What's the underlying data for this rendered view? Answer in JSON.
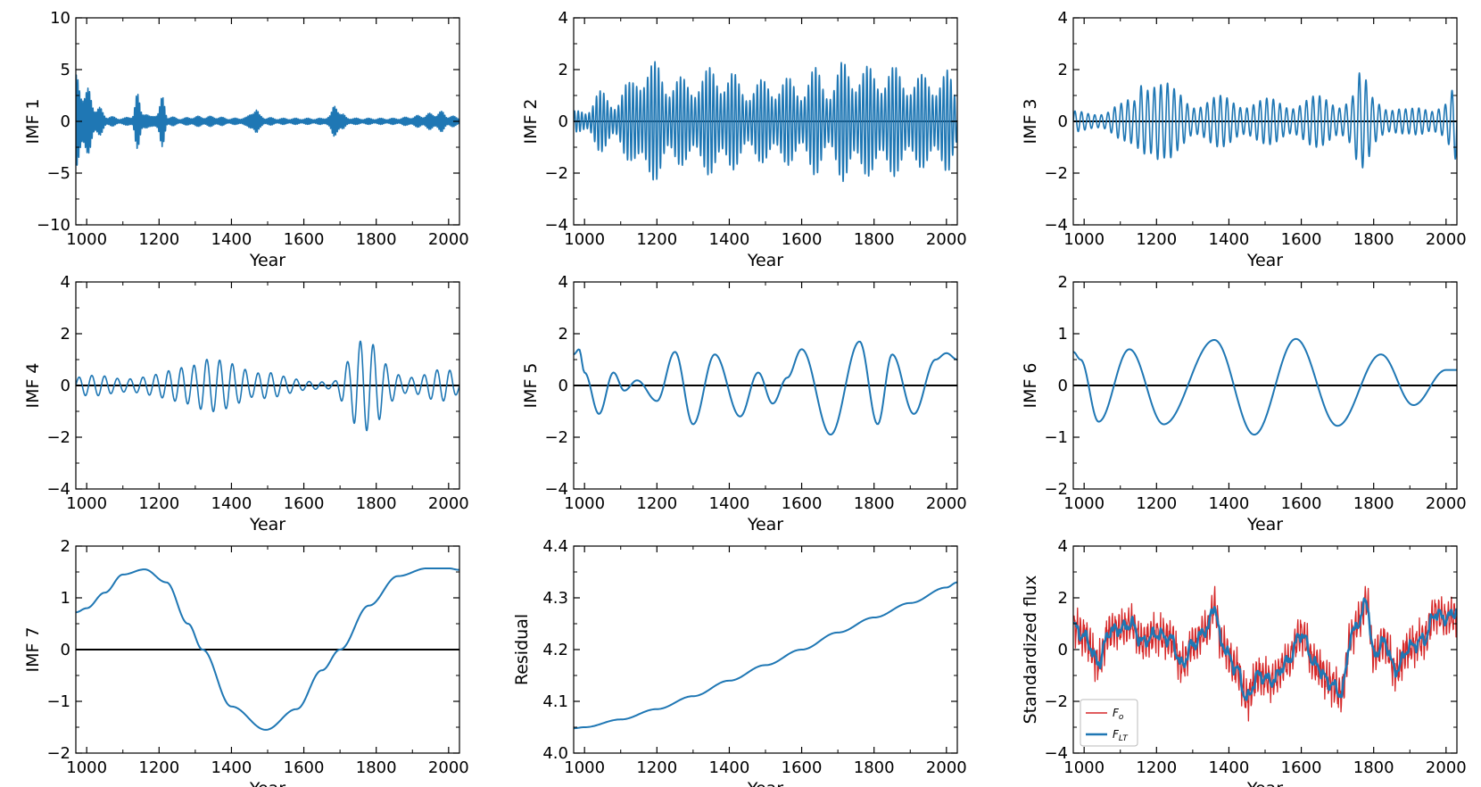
{
  "figure": {
    "background": "#ffffff",
    "blue": "#1f77b4",
    "red": "#d62728"
  },
  "chart_data": [
    {
      "type": "line",
      "id": "imf1",
      "xlabel": "Year",
      "ylabel": "IMF 1",
      "xlim": [
        970,
        2030
      ],
      "ylim": [
        -10,
        10
      ],
      "xticks": [
        1000,
        1200,
        1400,
        1600,
        1800,
        2000
      ],
      "yticks": [
        -10,
        -5,
        0,
        5,
        10
      ],
      "zero_line": true,
      "series": [
        {
          "name": "IMF 1",
          "color": "#1f77b4",
          "kind": "oscillation",
          "x": [
            970,
            985,
            1000,
            1030,
            1060,
            1100,
            1125,
            1140,
            1155,
            1175,
            1195,
            1210,
            1225,
            1260,
            1300,
            1350,
            1400,
            1440,
            1465,
            1480,
            1495,
            1530,
            1600,
            1650,
            1670,
            1690,
            1705,
            1720,
            1750,
            1800,
            1850,
            1880,
            1900,
            1920,
            1950,
            1980,
            2000,
            2030
          ],
          "amp": [
            4.5,
            4.0,
            3.3,
            1.5,
            0.5,
            0.3,
            0.6,
            2.7,
            1.2,
            0.5,
            1.0,
            2.5,
            0.5,
            0.3,
            0.5,
            0.5,
            0.3,
            0.4,
            1.5,
            0.6,
            0.4,
            0.3,
            0.3,
            0.3,
            0.6,
            2.0,
            0.8,
            0.4,
            0.3,
            0.3,
            0.3,
            0.4,
            0.5,
            0.6,
            0.8,
            1.0,
            0.6,
            0.4
          ],
          "cycles": 230
        }
      ]
    },
    {
      "type": "line",
      "id": "imf2",
      "xlabel": "Year",
      "ylabel": "IMF 2",
      "xlim": [
        970,
        2030
      ],
      "ylim": [
        -4,
        4
      ],
      "xticks": [
        1000,
        1200,
        1400,
        1600,
        1800,
        2000
      ],
      "yticks": [
        -4,
        -2,
        0,
        2,
        4
      ],
      "zero_line": true,
      "series": [
        {
          "name": "IMF 2",
          "color": "#1f77b4",
          "kind": "oscillation",
          "x": [
            970,
            1000,
            1040,
            1080,
            1120,
            1160,
            1200,
            1240,
            1280,
            1320,
            1360,
            1400,
            1440,
            1480,
            1520,
            1560,
            1600,
            1640,
            1680,
            1720,
            1760,
            1800,
            1840,
            1880,
            1920,
            1960,
            2000,
            2030
          ],
          "amp": [
            0.4,
            0.5,
            1.2,
            0.9,
            1.5,
            2.4,
            2.3,
            1.8,
            1.7,
            1.9,
            2.2,
            2.0,
            1.5,
            1.6,
            1.7,
            1.7,
            1.6,
            2.1,
            1.6,
            2.4,
            2.2,
            2.1,
            2.2,
            2.0,
            1.8,
            1.9,
            2.0,
            1.2
          ],
          "cycles": 105
        }
      ]
    },
    {
      "type": "line",
      "id": "imf3",
      "xlabel": "Year",
      "ylabel": "IMF 3",
      "xlim": [
        970,
        2030
      ],
      "ylim": [
        -4,
        4
      ],
      "xticks": [
        1000,
        1200,
        1400,
        1600,
        1800,
        2000
      ],
      "yticks": [
        -4,
        -2,
        0,
        2,
        4
      ],
      "zero_line": true,
      "series": [
        {
          "name": "IMF 3",
          "color": "#1f77b4",
          "kind": "oscillation",
          "x": [
            970,
            1000,
            1050,
            1100,
            1140,
            1160,
            1180,
            1200,
            1220,
            1260,
            1300,
            1350,
            1400,
            1450,
            1500,
            1550,
            1600,
            1650,
            1700,
            1740,
            1760,
            1780,
            1800,
            1850,
            1900,
            1950,
            1990,
            2030
          ],
          "amp": [
            0.4,
            0.4,
            0.5,
            0.7,
            1.0,
            2.4,
            2.4,
            2.2,
            1.6,
            1.2,
            1.0,
            1.0,
            1.0,
            1.0,
            0.9,
            0.9,
            1.0,
            1.0,
            1.0,
            1.3,
            2.0,
            1.6,
            1.0,
            0.8,
            0.5,
            0.6,
            1.0,
            1.6
          ],
          "cycles": 58
        }
      ]
    },
    {
      "type": "line",
      "id": "imf4",
      "xlabel": "Year",
      "ylabel": "IMF 4",
      "xlim": [
        970,
        2030
      ],
      "ylim": [
        -4,
        4
      ],
      "xticks": [
        1000,
        1200,
        1400,
        1600,
        1800,
        2000
      ],
      "yticks": [
        -4,
        -2,
        0,
        2,
        4
      ],
      "zero_line": true,
      "series": [
        {
          "name": "IMF 4",
          "color": "#1f77b4",
          "kind": "oscillation",
          "x": [
            970,
            1000,
            1050,
            1100,
            1150,
            1200,
            1240,
            1280,
            1300,
            1330,
            1360,
            1390,
            1420,
            1460,
            1500,
            1560,
            1620,
            1680,
            1720,
            1750,
            1780,
            1800,
            1840,
            1880,
            1920,
            1960,
            2000,
            2030
          ],
          "amp": [
            0.3,
            0.4,
            0.5,
            0.5,
            0.5,
            0.5,
            0.6,
            0.8,
            1.0,
            1.7,
            2.0,
            1.7,
            1.0,
            0.5,
            0.5,
            0.4,
            0.3,
            0.2,
            1.0,
            1.7,
            1.8,
            1.7,
            1.0,
            0.6,
            0.6,
            0.7,
            0.6,
            0.3
          ],
          "cycles": 30
        }
      ]
    },
    {
      "type": "line",
      "id": "imf5",
      "xlabel": "Year",
      "ylabel": "IMF 5",
      "xlim": [
        970,
        2030
      ],
      "ylim": [
        -4,
        4
      ],
      "xticks": [
        1000,
        1200,
        1400,
        1600,
        1800,
        2000
      ],
      "yticks": [
        -4,
        -2,
        0,
        2,
        4
      ],
      "zero_line": true,
      "series": [
        {
          "name": "IMF 5",
          "color": "#1f77b4",
          "kind": "points",
          "x": [
            970,
            985,
            1000,
            1040,
            1080,
            1110,
            1145,
            1200,
            1250,
            1300,
            1360,
            1430,
            1480,
            1520,
            1560,
            1600,
            1680,
            1760,
            1810,
            1850,
            1910,
            1970,
            2000,
            2030
          ],
          "y": [
            1.2,
            1.4,
            0.5,
            -1.1,
            0.5,
            -0.2,
            0.2,
            -0.6,
            1.3,
            -1.5,
            1.2,
            -1.2,
            0.5,
            -0.7,
            0.3,
            1.4,
            -1.9,
            1.7,
            -1.5,
            1.2,
            -1.1,
            1.0,
            1.25,
            1.0
          ]
        }
      ]
    },
    {
      "type": "line",
      "id": "imf6",
      "xlabel": "Year",
      "ylabel": "IMF 6",
      "xlim": [
        970,
        2030
      ],
      "ylim": [
        -2,
        2
      ],
      "xticks": [
        1000,
        1200,
        1400,
        1600,
        1800,
        2000
      ],
      "yticks": [
        -2,
        -1,
        0,
        1,
        2
      ],
      "zero_line": true,
      "series": [
        {
          "name": "IMF 6",
          "color": "#1f77b4",
          "kind": "points",
          "x": [
            970,
            990,
            1040,
            1125,
            1220,
            1360,
            1470,
            1585,
            1700,
            1820,
            1910,
            2000,
            2030
          ],
          "y": [
            0.65,
            0.5,
            -0.7,
            0.7,
            -0.75,
            0.88,
            -0.95,
            0.9,
            -0.78,
            0.6,
            -0.38,
            0.3,
            0.3
          ]
        }
      ]
    },
    {
      "type": "line",
      "id": "imf7",
      "xlabel": "Year",
      "ylabel": "IMF 7",
      "xlim": [
        970,
        2030
      ],
      "ylim": [
        -2,
        2
      ],
      "xticks": [
        1000,
        1200,
        1400,
        1600,
        1800,
        2000
      ],
      "yticks": [
        -2,
        -1,
        0,
        1,
        2
      ],
      "zero_line": true,
      "series": [
        {
          "name": "IMF 7",
          "color": "#1f77b4",
          "kind": "points",
          "x": [
            970,
            1000,
            1050,
            1100,
            1160,
            1220,
            1280,
            1320,
            1400,
            1495,
            1580,
            1650,
            1700,
            1780,
            1860,
            1940,
            2000,
            2030
          ],
          "y": [
            0.72,
            0.8,
            1.1,
            1.45,
            1.55,
            1.3,
            0.5,
            0.0,
            -1.1,
            -1.55,
            -1.15,
            -0.4,
            0.0,
            0.85,
            1.42,
            1.57,
            1.57,
            1.54
          ]
        }
      ]
    },
    {
      "type": "line",
      "id": "residual",
      "xlabel": "Year",
      "ylabel": "Residual",
      "xlim": [
        970,
        2030
      ],
      "ylim": [
        4.0,
        4.4
      ],
      "xticks": [
        1000,
        1200,
        1400,
        1600,
        1800,
        2000
      ],
      "yticks": [
        4.0,
        4.1,
        4.2,
        4.3,
        4.4
      ],
      "zero_line": false,
      "series": [
        {
          "name": "Residual",
          "color": "#1f77b4",
          "kind": "points",
          "x": [
            970,
            1000,
            1100,
            1200,
            1300,
            1400,
            1500,
            1600,
            1700,
            1800,
            1900,
            2000,
            2030
          ],
          "y": [
            4.048,
            4.05,
            4.065,
            4.085,
            4.11,
            4.14,
            4.17,
            4.2,
            4.233,
            4.262,
            4.29,
            4.32,
            4.33
          ]
        }
      ]
    },
    {
      "type": "line",
      "id": "flux",
      "xlabel": "Year",
      "ylabel": "Standardized flux",
      "xlim": [
        970,
        2030
      ],
      "ylim": [
        -4,
        4
      ],
      "xticks": [
        1000,
        1200,
        1400,
        1600,
        1800,
        2000
      ],
      "yticks": [
        -4,
        -2,
        0,
        2,
        4
      ],
      "zero_line": false,
      "legend": {
        "position": "lower-left",
        "entries": [
          "F_o",
          "F_LT"
        ]
      },
      "series": [
        {
          "name": "Fo",
          "label_main": "F",
          "label_sub": "o",
          "color": "#d62728",
          "kind": "noisy",
          "x": [
            970,
            1000,
            1040,
            1070,
            1100,
            1130,
            1160,
            1200,
            1240,
            1270,
            1300,
            1340,
            1360,
            1380,
            1420,
            1450,
            1480,
            1520,
            1560,
            1600,
            1640,
            1680,
            1710,
            1740,
            1760,
            1780,
            1800,
            1830,
            1860,
            1900,
            1940,
            1970,
            2000,
            2030
          ],
          "y": [
            0.9,
            0.5,
            -0.5,
            0.7,
            0.8,
            1.0,
            0.3,
            0.6,
            0.4,
            -0.6,
            0.2,
            0.8,
            1.7,
            0.2,
            -0.7,
            -1.9,
            -1.0,
            -1.2,
            -0.5,
            0.6,
            -0.6,
            -1.3,
            -1.7,
            0.6,
            1.1,
            1.9,
            -0.2,
            0.3,
            -0.8,
            0.1,
            0.4,
            1.4,
            1.2,
            1.3
          ],
          "noise": 0.85,
          "cycles": 120
        },
        {
          "name": "FLT",
          "label_main": "F",
          "label_sub": "LT",
          "color": "#1f77b4",
          "kind": "smooth",
          "x": [
            970,
            1000,
            1040,
            1070,
            1100,
            1130,
            1160,
            1200,
            1240,
            1270,
            1300,
            1340,
            1360,
            1380,
            1420,
            1450,
            1480,
            1520,
            1560,
            1600,
            1640,
            1680,
            1710,
            1740,
            1760,
            1780,
            1800,
            1830,
            1860,
            1900,
            1940,
            1970,
            2000,
            2030
          ],
          "y": [
            0.9,
            0.5,
            -0.5,
            0.7,
            0.8,
            1.0,
            0.3,
            0.6,
            0.4,
            -0.6,
            0.2,
            0.8,
            1.7,
            0.2,
            -0.7,
            -1.9,
            -1.0,
            -1.2,
            -0.5,
            0.6,
            -0.6,
            -1.3,
            -1.7,
            0.6,
            1.1,
            1.9,
            -0.2,
            0.3,
            -0.8,
            0.1,
            0.4,
            1.4,
            1.2,
            1.5
          ],
          "noise": 0.3,
          "cycles": 40
        }
      ]
    }
  ]
}
